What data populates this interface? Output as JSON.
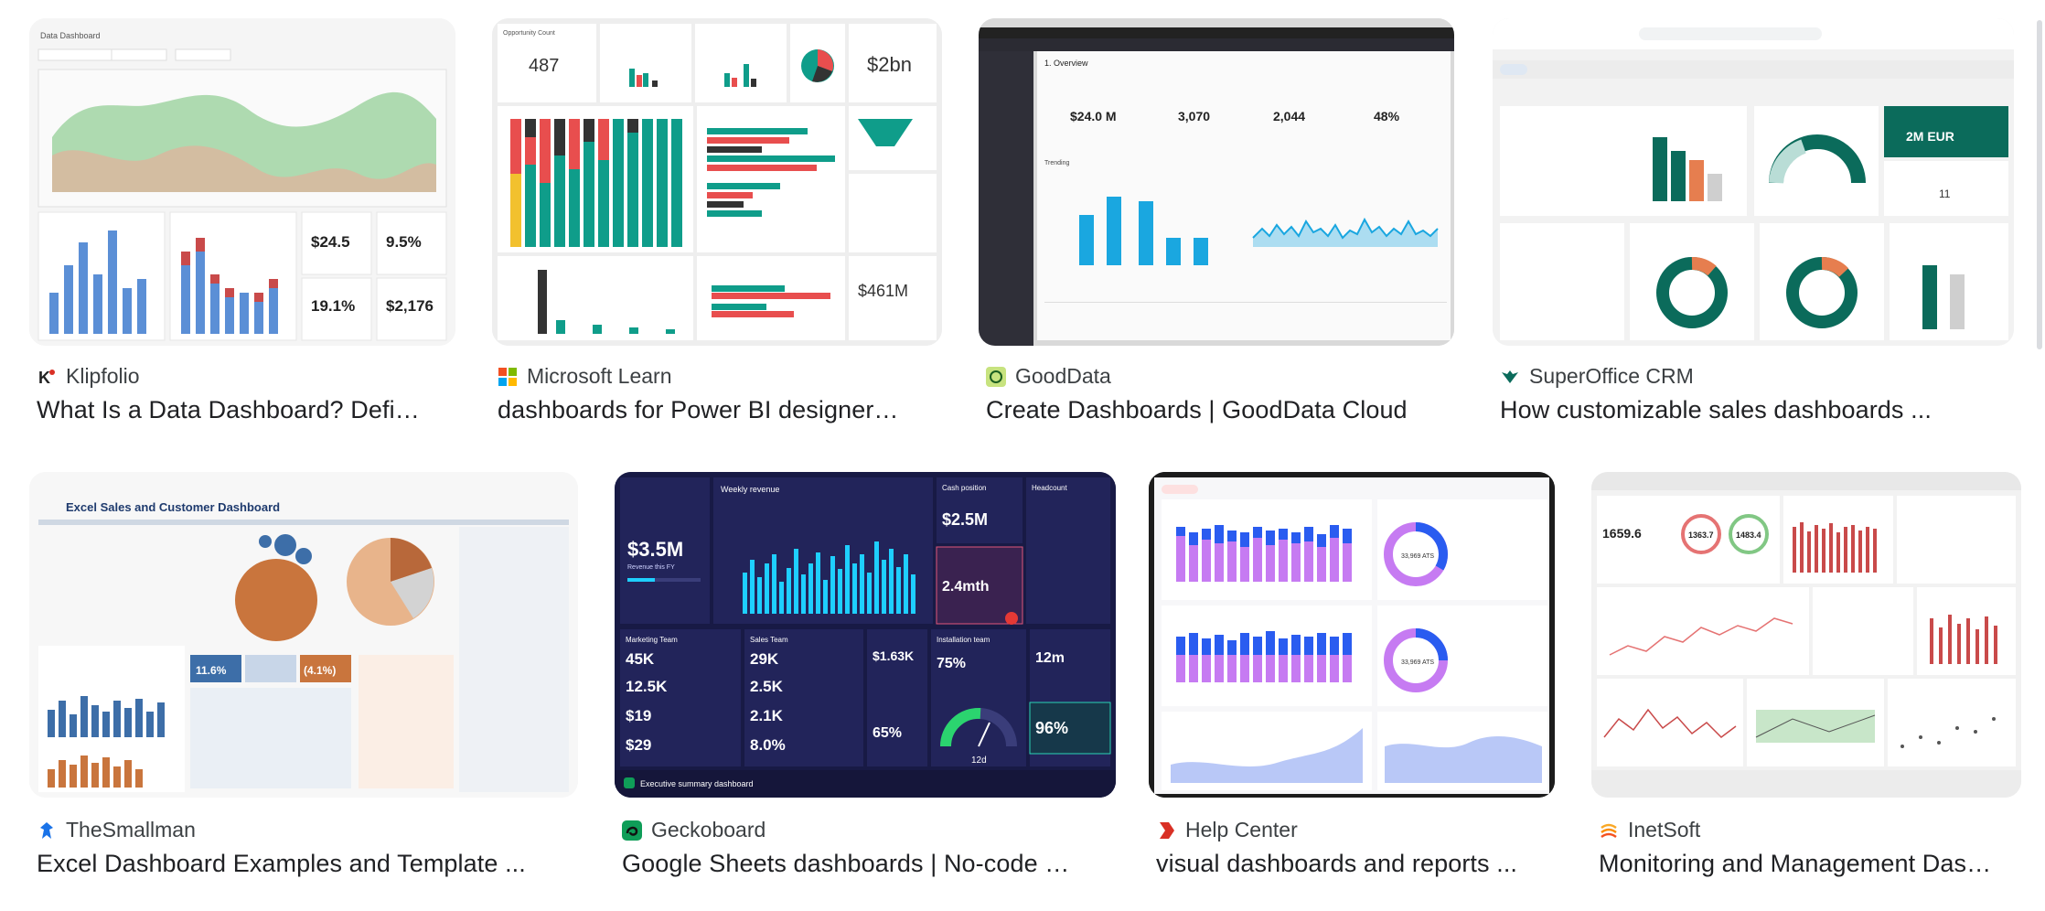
{
  "results": [
    {
      "source": "Klipfolio",
      "title": "What Is a Data Dashboard? Defi…",
      "favicon": "klipfolio-icon",
      "accent": "#d93025",
      "thumb": {
        "heading": "Data Dashboard",
        "kpi1": "$24.5",
        "kpi2": "9.5%",
        "kpi3": "19.1%",
        "kpi4": "$2,176"
      }
    },
    {
      "source": "Microsoft Learn",
      "title": "dashboards for Power BI designer…",
      "favicon": "microsoft-icon",
      "accent": "#f25022",
      "thumb": {
        "label1": "Opportunity Count",
        "kpi1": "487",
        "kpi2": "$2bn",
        "kpi3": "$461M"
      }
    },
    {
      "source": "GoodData",
      "title": "Create Dashboards | GoodData Cloud",
      "favicon": "gooddata-icon",
      "accent": "#7cb342",
      "thumb": {
        "heading": "1. Overview",
        "kpi1": "$24.0 M",
        "kpi2": "3,070",
        "kpi3": "2,044",
        "kpi4": "48%",
        "section": "Trending"
      }
    },
    {
      "source": "SuperOffice CRM",
      "title": "How customizable sales dashboards ...",
      "favicon": "superoffice-icon",
      "accent": "#0b6b5b",
      "thumb": {
        "kpi1": "2M EUR",
        "kpi2": "11"
      }
    },
    {
      "source": "TheSmallman",
      "title": "Excel Dashboard Examples and Template ...",
      "favicon": "thesmallman-icon",
      "accent": "#1a73e8",
      "thumb": {
        "heading": "Excel Sales and Customer Dashboard",
        "kpi1": "11.6%",
        "kpi2": "(4.1%)"
      }
    },
    {
      "source": "Geckoboard",
      "title": "Google Sheets dashboards | No-code …",
      "favicon": "geckoboard-icon",
      "accent": "#0f9d58",
      "thumb": {
        "label1": "Weekly revenue",
        "kpi1": "$3.5M",
        "kpi1sub": "Revenue this FY",
        "label2": "Cash position",
        "kpi2": "$2.5M",
        "kpi3": "2.4mth",
        "label3": "Headcount",
        "team1": "Marketing Team",
        "team2": "Sales Team",
        "m1": "45K",
        "m2": "12.5K",
        "m3": "$19",
        "m4": "$29",
        "s1": "29K",
        "s2": "2.5K",
        "s3": "2.1K",
        "s4": "8.0%",
        "k1": "$1.63K",
        "k2": "65%",
        "label4": "Installation team",
        "k3": "75%",
        "k4": "12m",
        "k5": "96%",
        "k6": "12d",
        "footer": "Executive summary dashboard"
      }
    },
    {
      "source": "Help Center",
      "title": "visual dashboards and reports ...",
      "favicon": "helpcenter-icon",
      "accent": "#d93025",
      "thumb": {
        "donut1": "33,969 ATS",
        "donut2": "33,969 ATS"
      }
    },
    {
      "source": "InetSoft",
      "title": "Monitoring and Management Das…",
      "favicon": "inetsoft-icon",
      "accent": "#f9a825",
      "thumb": {
        "g1": "1659.6",
        "g2": "1363.7",
        "g3": "1483.4"
      }
    }
  ]
}
